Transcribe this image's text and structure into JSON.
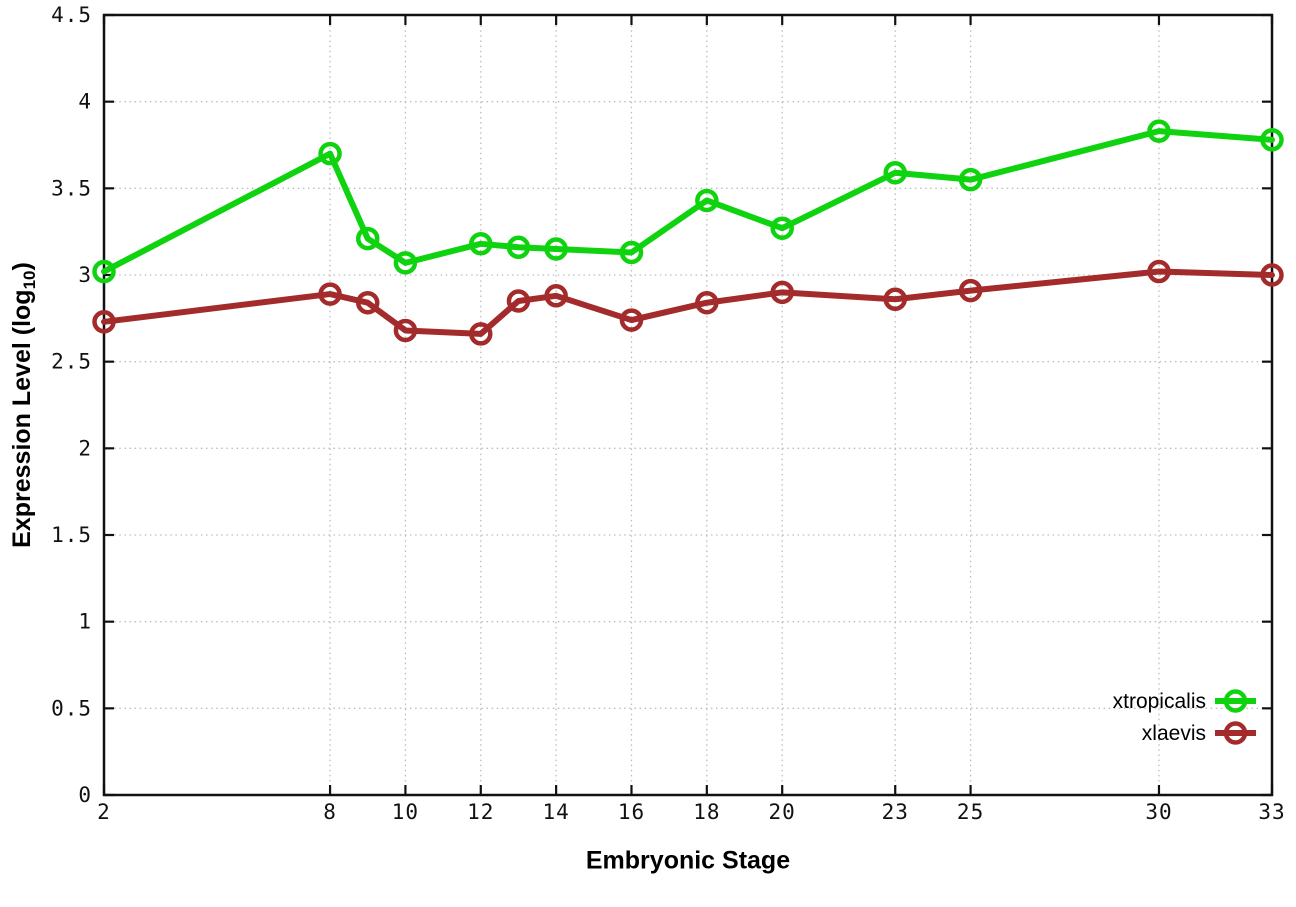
{
  "page": {
    "background_color": "#ffffff",
    "text_color": "#000000",
    "grid_color": "#bdbdbd",
    "border_color": "#111111"
  },
  "chart_data": {
    "type": "line",
    "title": "",
    "xlabel": "Embryonic Stage",
    "ylabel": "Expression Level (log10)",
    "ylabel_parts": {
      "prefix": "Expression Level (log",
      "subscript": "10",
      "suffix": ")"
    },
    "xlim": [
      2,
      33
    ],
    "ylim": [
      0,
      4.5
    ],
    "grid": true,
    "legend_position": "bottom-right-inside",
    "x_ticks": [
      2,
      8,
      10,
      12,
      14,
      16,
      18,
      20,
      23,
      25,
      30,
      33
    ],
    "x_tick_labels": [
      "2",
      "8",
      "10",
      "12",
      "14",
      "16",
      "18",
      "20",
      "23",
      "25",
      "30",
      "33"
    ],
    "y_ticks": [
      0,
      0.5,
      1,
      1.5,
      2,
      2.5,
      3,
      3.5,
      4,
      4.5
    ],
    "y_tick_labels": [
      "0",
      "0.5",
      "1",
      "1.5",
      "2",
      "2.5",
      "3",
      "3.5",
      "4",
      "4.5"
    ],
    "x": [
      2,
      8,
      9,
      10,
      12,
      13,
      14,
      16,
      18,
      20,
      23,
      25,
      30,
      33
    ],
    "series": [
      {
        "name": "xtropicalis",
        "color": "#0ed30e",
        "marker": "open-circle",
        "values": [
          3.02,
          3.7,
          3.21,
          3.07,
          3.18,
          3.16,
          3.15,
          3.13,
          3.43,
          3.27,
          3.59,
          3.55,
          3.83,
          3.78
        ]
      },
      {
        "name": "xlaevis",
        "color": "#a32b2b",
        "marker": "open-circle",
        "values": [
          2.73,
          2.89,
          2.84,
          2.68,
          2.66,
          2.85,
          2.88,
          2.74,
          2.84,
          2.9,
          2.86,
          2.91,
          3.02,
          3.0
        ]
      }
    ]
  }
}
